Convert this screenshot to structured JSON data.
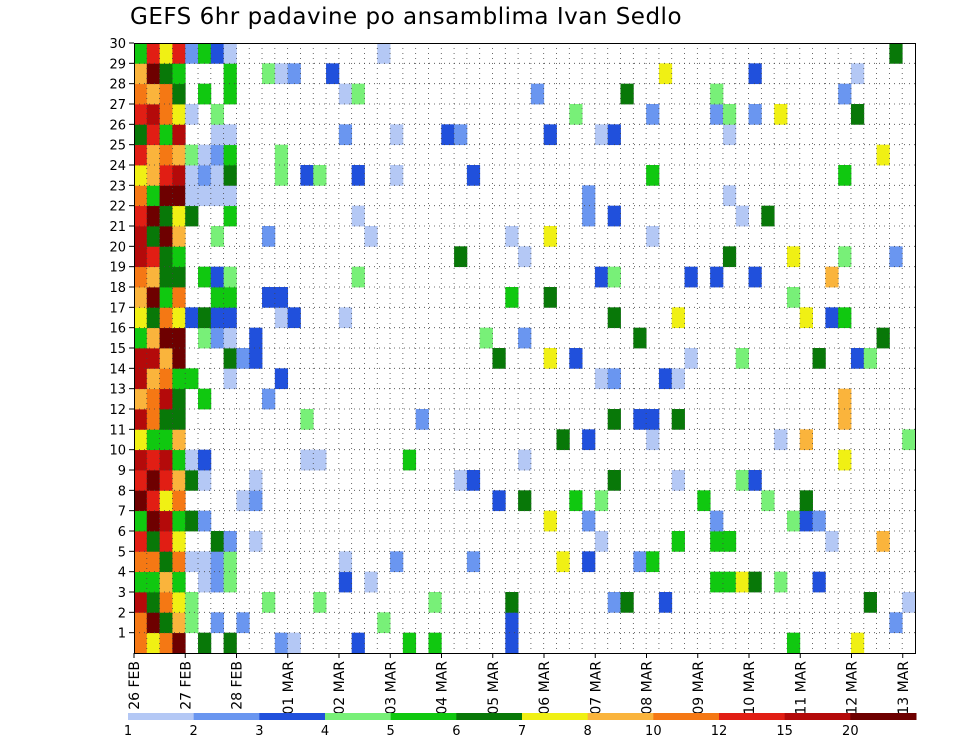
{
  "chart_data": {
    "type": "heatmap",
    "title": "GEFS 6hr padavine po ansamblima Ivan Sedlo",
    "y_ticks": [
      "1",
      "2",
      "3",
      "4",
      "5",
      "6",
      "7",
      "8",
      "9",
      "10",
      "11",
      "12",
      "13",
      "14",
      "15",
      "16",
      "17",
      "18",
      "19",
      "20",
      "21",
      "22",
      "23",
      "24",
      "25",
      "26",
      "27",
      "28",
      "29",
      "30"
    ],
    "x_ticks": [
      "26 FEB",
      "27 FEB",
      "28 FEB",
      "01 MAR",
      "02 MAR",
      "03 MAR",
      "04 MAR",
      "05 MAR",
      "06 MAR",
      "07 MAR",
      "08 MAR",
      "09 MAR",
      "10 MAR",
      "11 MAR",
      "12 MAR",
      "13 MAR"
    ],
    "colorbar": {
      "labels": [
        "1",
        "2",
        "3",
        "4",
        "5",
        "6",
        "7",
        "8",
        "10",
        "12",
        "15",
        "20"
      ],
      "colors": [
        "#b4c8f5",
        "#6a96f0",
        "#2050dc",
        "#78f078",
        "#10c810",
        "#087808",
        "#f0f014",
        "#fab43c",
        "#f57814",
        "#e11e14",
        "#b40a0a",
        "#6e0000"
      ]
    },
    "grid": true
  }
}
